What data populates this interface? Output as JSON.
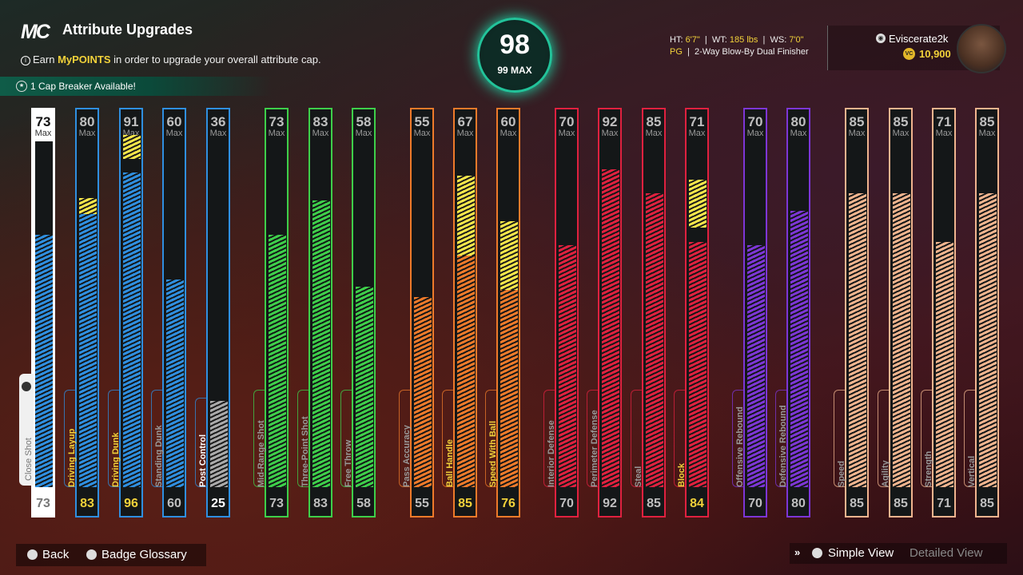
{
  "header": {
    "logo": "MC",
    "title": "Attribute Upgrades",
    "subtitle_pre": "Earn ",
    "subtitle_highlight": "MyPOINTS",
    "subtitle_post": " in order to upgrade your overall attribute cap.",
    "cap_breaker": "1 Cap Breaker Available!"
  },
  "overall": {
    "value": "98",
    "max_label": "99 MAX"
  },
  "player": {
    "ht_label": "HT:",
    "ht": "6'7\"",
    "wt_label": "WT:",
    "wt": "185 lbs",
    "ws_label": "WS:",
    "ws": "7'0\"",
    "position": "PG",
    "build": "2-Way Blow-By Dual Finisher",
    "gamertag": "Eviscerate2k",
    "vc": "10,900"
  },
  "max_label": "Max",
  "attributes": [
    {
      "name": "Close Shot",
      "max": 73,
      "current": 73,
      "target": 73,
      "color": "#2f8fe0",
      "selected": true
    },
    {
      "name": "Driving Layup",
      "max": 80,
      "current": 80,
      "target": 83,
      "color": "#2f8fe0",
      "state": "upgrade"
    },
    {
      "name": "Driving Dunk",
      "max": 91,
      "current": 91,
      "target": 96,
      "color": "#2f8fe0",
      "state": "upgrade"
    },
    {
      "name": "Standing Dunk",
      "max": 60,
      "current": 60,
      "target": 60,
      "color": "#2f8fe0"
    },
    {
      "name": "Post Control",
      "max": 36,
      "current": 25,
      "target": 25,
      "color": "#2f8fe0",
      "state": "locked"
    },
    {
      "name": "Mid-Range Shot",
      "max": 73,
      "current": 73,
      "target": 73,
      "color": "#3ecf4a"
    },
    {
      "name": "Three-Point Shot",
      "max": 83,
      "current": 83,
      "target": 83,
      "color": "#3ecf4a"
    },
    {
      "name": "Free Throw",
      "max": 58,
      "current": 58,
      "target": 58,
      "color": "#3ecf4a"
    },
    {
      "name": "Pass Accuracy",
      "max": 55,
      "current": 55,
      "target": 55,
      "color": "#ee7a2a"
    },
    {
      "name": "Ball Handle",
      "max": 67,
      "current": 67,
      "target": 85,
      "color": "#ee7a2a",
      "state": "upgrade"
    },
    {
      "name": "Speed With Ball",
      "max": 60,
      "current": 60,
      "target": 76,
      "color": "#ee7a2a",
      "state": "upgrade"
    },
    {
      "name": "Interior Defense",
      "max": 70,
      "current": 70,
      "target": 70,
      "color": "#e0213f"
    },
    {
      "name": "Perimeter Defense",
      "max": 92,
      "current": 92,
      "target": 92,
      "color": "#e0213f"
    },
    {
      "name": "Steal",
      "max": 85,
      "current": 85,
      "target": 85,
      "color": "#e0213f"
    },
    {
      "name": "Block",
      "max": 71,
      "current": 71,
      "target": 84,
      "color": "#e0213f",
      "state": "upgrade"
    },
    {
      "name": "Offensive Rebound",
      "max": 70,
      "current": 70,
      "target": 70,
      "color": "#7d36d6"
    },
    {
      "name": "Defensive Rebound",
      "max": 80,
      "current": 80,
      "target": 80,
      "color": "#7d36d6"
    },
    {
      "name": "Speed",
      "max": 85,
      "current": 85,
      "target": 85,
      "color": "#f0b48e"
    },
    {
      "name": "Agility",
      "max": 85,
      "current": 85,
      "target": 85,
      "color": "#f0b48e"
    },
    {
      "name": "Strength",
      "max": 71,
      "current": 71,
      "target": 71,
      "color": "#f0b48e"
    },
    {
      "name": "Vertical",
      "max": 85,
      "current": 85,
      "target": 85,
      "color": "#f0b48e"
    }
  ],
  "footer": {
    "back": "Back",
    "badge_glossary": "Badge Glossary",
    "simple_view": "Simple View",
    "detailed_view": "Detailed View"
  }
}
